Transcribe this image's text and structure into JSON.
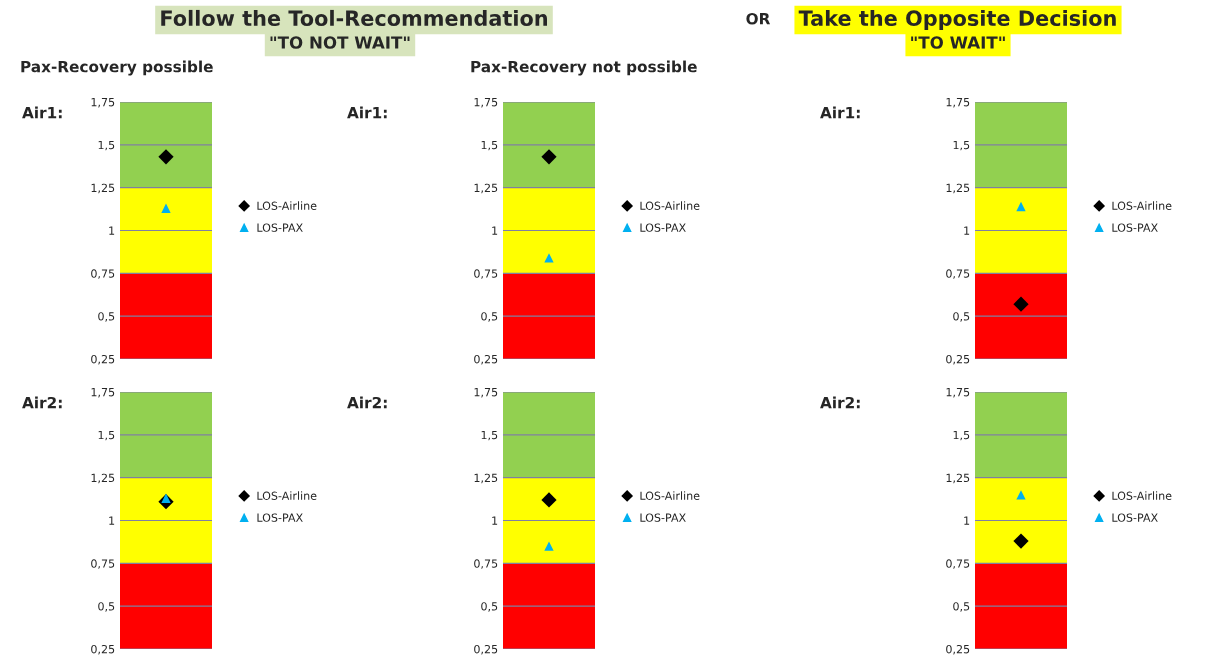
{
  "chart_data": [
    {
      "type": "scatter",
      "title": "Pax-Recovery possible",
      "ylabel": "Air1:",
      "annotations": [
        "Follow the Tool-Recommendation",
        "\"TO NOT WAIT\""
      ],
      "categories": [
        null
      ],
      "series": [
        {
          "name": "LOS-Airline",
          "color": "#000000",
          "marker": "diamond",
          "values": [
            1.43
          ]
        },
        {
          "name": "LOS-PAX",
          "color": "#00b0f0",
          "marker": "triangle",
          "values": [
            1.13
          ]
        }
      ],
      "ylim": [
        0.25,
        1.75
      ],
      "yticks": [
        {
          "value": 0.25,
          "label": "0,25"
        },
        {
          "value": 0.5,
          "label": "0,5"
        },
        {
          "value": 0.75,
          "label": "0,75"
        },
        1,
        {
          "value": 1.25,
          "label": "1,25"
        },
        {
          "value": 1.5,
          "label": "1,5"
        },
        {
          "value": 1.75,
          "label": "1,75"
        }
      ],
      "bands": [
        {
          "axis": "y",
          "from": 0.25,
          "to": 0.75,
          "color": "#ff0000"
        },
        {
          "axis": "y",
          "from": 0.75,
          "to": 1.25,
          "color": "#ffff00"
        },
        {
          "axis": "y",
          "from": 1.25,
          "to": 1.75,
          "color": "#92d050"
        }
      ],
      "grid": "y",
      "legend": "right"
    },
    {
      "type": "scatter",
      "title": "Pax-Recovery not possible",
      "ylabel": "Air1:",
      "categories": [
        null
      ],
      "series": [
        {
          "name": "LOS-Airline",
          "color": "#000000",
          "marker": "diamond",
          "values": [
            1.43
          ]
        },
        {
          "name": "LOS-PAX",
          "color": "#00b0f0",
          "marker": "triangle",
          "values": [
            0.84
          ]
        }
      ],
      "ylim": [
        0.25,
        1.75
      ],
      "yticks": [
        {
          "value": 0.25,
          "label": "0,25"
        },
        {
          "value": 0.5,
          "label": "0,5"
        },
        {
          "value": 0.75,
          "label": "0,75"
        },
        1,
        {
          "value": 1.25,
          "label": "1,25"
        },
        {
          "value": 1.5,
          "label": "1,5"
        },
        {
          "value": 1.75,
          "label": "1,75"
        }
      ],
      "bands": [
        {
          "axis": "y",
          "from": 0.25,
          "to": 0.75,
          "color": "#ff0000"
        },
        {
          "axis": "y",
          "from": 0.75,
          "to": 1.25,
          "color": "#ffff00"
        },
        {
          "axis": "y",
          "from": 1.25,
          "to": 1.75,
          "color": "#92d050"
        }
      ],
      "grid": "y",
      "legend": "right"
    },
    {
      "type": "scatter",
      "ylabel": "Air1:",
      "annotations": [
        "OR",
        "Take the Opposite Decision",
        "\"TO WAIT\""
      ],
      "categories": [
        null
      ],
      "series": [
        {
          "name": "LOS-Airline",
          "color": "#000000",
          "marker": "diamond",
          "values": [
            0.57
          ]
        },
        {
          "name": "LOS-PAX",
          "color": "#00b0f0",
          "marker": "triangle",
          "values": [
            1.14
          ]
        }
      ],
      "ylim": [
        0.25,
        1.75
      ],
      "yticks": [
        {
          "value": 0.25,
          "label": "0,25"
        },
        {
          "value": 0.5,
          "label": "0,5"
        },
        {
          "value": 0.75,
          "label": "0,75"
        },
        1,
        {
          "value": 1.25,
          "label": "1,25"
        },
        {
          "value": 1.5,
          "label": "1,5"
        },
        {
          "value": 1.75,
          "label": "1,75"
        }
      ],
      "bands": [
        {
          "axis": "y",
          "from": 0.25,
          "to": 0.75,
          "color": "#ff0000"
        },
        {
          "axis": "y",
          "from": 0.75,
          "to": 1.25,
          "color": "#ffff00"
        },
        {
          "axis": "y",
          "from": 1.25,
          "to": 1.75,
          "color": "#92d050"
        }
      ],
      "grid": "y",
      "legend": "right"
    },
    {
      "type": "scatter",
      "ylabel": "Air2:",
      "categories": [
        null
      ],
      "series": [
        {
          "name": "LOS-Airline",
          "color": "#000000",
          "marker": "diamond",
          "values": [
            1.11
          ]
        },
        {
          "name": "LOS-PAX",
          "color": "#00b0f0",
          "marker": "triangle",
          "values": [
            1.13
          ]
        }
      ],
      "ylim": [
        0.25,
        1.75
      ],
      "yticks": [
        {
          "value": 0.25,
          "label": "0,25"
        },
        {
          "value": 0.5,
          "label": "0,5"
        },
        {
          "value": 0.75,
          "label": "0,75"
        },
        1,
        {
          "value": 1.25,
          "label": "1,25"
        },
        {
          "value": 1.5,
          "label": "1,5"
        },
        {
          "value": 1.75,
          "label": "1,75"
        }
      ],
      "bands": [
        {
          "axis": "y",
          "from": 0.25,
          "to": 0.75,
          "color": "#ff0000"
        },
        {
          "axis": "y",
          "from": 0.75,
          "to": 1.25,
          "color": "#ffff00"
        },
        {
          "axis": "y",
          "from": 1.25,
          "to": 1.75,
          "color": "#92d050"
        }
      ],
      "grid": "y",
      "legend": "right"
    },
    {
      "type": "scatter",
      "ylabel": "Air2:",
      "categories": [
        null
      ],
      "series": [
        {
          "name": "LOS-Airline",
          "color": "#000000",
          "marker": "diamond",
          "values": [
            1.12
          ]
        },
        {
          "name": "LOS-PAX",
          "color": "#00b0f0",
          "marker": "triangle",
          "values": [
            0.85
          ]
        }
      ],
      "ylim": [
        0.25,
        1.75
      ],
      "yticks": [
        {
          "value": 0.25,
          "label": "0,25"
        },
        {
          "value": 0.5,
          "label": "0,5"
        },
        {
          "value": 0.75,
          "label": "0,75"
        },
        1,
        {
          "value": 1.25,
          "label": "1,25"
        },
        {
          "value": 1.5,
          "label": "1,5"
        },
        {
          "value": 1.75,
          "label": "1,75"
        }
      ],
      "bands": [
        {
          "axis": "y",
          "from": 0.25,
          "to": 0.75,
          "color": "#ff0000"
        },
        {
          "axis": "y",
          "from": 0.75,
          "to": 1.25,
          "color": "#ffff00"
        },
        {
          "axis": "y",
          "from": 1.25,
          "to": 1.75,
          "color": "#92d050"
        }
      ],
      "grid": "y",
      "legend": "right"
    },
    {
      "type": "scatter",
      "ylabel": "Air2:",
      "categories": [
        null
      ],
      "series": [
        {
          "name": "LOS-Airline",
          "color": "#000000",
          "marker": "diamond",
          "values": [
            0.88
          ]
        },
        {
          "name": "LOS-PAX",
          "color": "#00b0f0",
          "marker": "triangle",
          "values": [
            1.15
          ]
        }
      ],
      "ylim": [
        0.25,
        1.75
      ],
      "yticks": [
        {
          "value": 0.25,
          "label": "0,25"
        },
        {
          "value": 0.5,
          "label": "0,5"
        },
        {
          "value": 0.75,
          "label": "0,75"
        },
        1,
        {
          "value": 1.25,
          "label": "1,25"
        },
        {
          "value": 1.5,
          "label": "1,5"
        },
        {
          "value": 1.75,
          "label": "1,75"
        }
      ],
      "bands": [
        {
          "axis": "y",
          "from": 0.25,
          "to": 0.75,
          "color": "#ff0000"
        },
        {
          "axis": "y",
          "from": 0.75,
          "to": 1.25,
          "color": "#ffff00"
        },
        {
          "axis": "y",
          "from": 1.25,
          "to": 1.75,
          "color": "#92d050"
        }
      ],
      "grid": "y",
      "legend": "right"
    }
  ]
}
